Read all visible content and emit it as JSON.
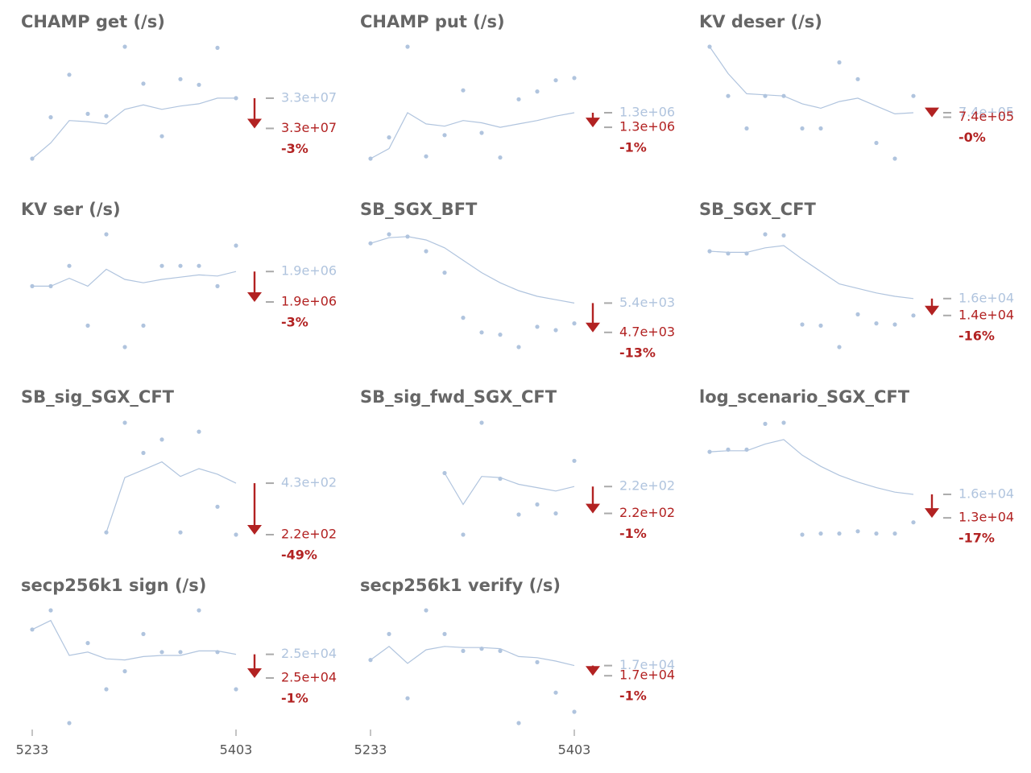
{
  "colors": {
    "title": "#666666",
    "line": "#b0c4de",
    "point": "#b0c4de",
    "prev_value": "#b0c4de",
    "current_value": "#b22222",
    "arrow": "#b22222",
    "axis": "#555555",
    "tick": "#aaaaaa"
  },
  "chart_data": [
    {
      "type": "line",
      "title": "CHAMP get (/s)",
      "x": [
        5233,
        5403
      ],
      "prev_label": "3.3e+07",
      "current_label": "3.3e+07",
      "change_label": "-3%",
      "points": [
        0.0,
        0.37,
        0.75,
        0.4,
        0.38,
        1.0,
        0.67,
        0.2,
        0.71,
        0.66,
        0.99,
        0.54
      ],
      "avg": [
        0.0,
        0.14,
        0.34,
        0.33,
        0.31,
        0.44,
        0.48,
        0.44,
        0.47,
        0.49,
        0.54,
        0.54
      ],
      "prev": 0.54,
      "cur": 0.27,
      "ylim": [
        -0.1,
        1.1
      ]
    },
    {
      "type": "line",
      "title": "CHAMP put (/s)",
      "x": [
        5233,
        5403
      ],
      "prev_label": "1.3e+06",
      "current_label": "1.3e+06",
      "change_label": "-1%",
      "points": [
        0.0,
        0.19,
        1.0,
        0.02,
        0.21,
        0.61,
        0.23,
        0.01,
        0.53,
        0.6,
        0.7,
        0.72
      ],
      "avg": [
        0.0,
        0.09,
        0.41,
        0.31,
        0.29,
        0.34,
        0.32,
        0.28,
        0.31,
        0.34,
        0.38,
        0.41
      ],
      "prev": 0.41,
      "cur": 0.28,
      "ylim": [
        -0.1,
        1.1
      ]
    },
    {
      "type": "line",
      "title": "KV deser (/s)",
      "x": [
        5233,
        5403
      ],
      "prev_label": "7.4e+05",
      "current_label": "7.4e+05",
      "change_label": "-0%",
      "points": [
        1.0,
        0.56,
        0.27,
        0.56,
        0.56,
        0.27,
        0.27,
        0.86,
        0.71,
        0.14,
        0.0,
        0.56
      ],
      "avg": [
        1.0,
        0.76,
        0.58,
        0.57,
        0.56,
        0.49,
        0.45,
        0.51,
        0.54,
        0.47,
        0.4,
        0.41
      ],
      "prev": 0.41,
      "cur": 0.37,
      "ylim": [
        -0.1,
        1.1
      ]
    },
    {
      "type": "line",
      "title": "KV ser (/s)",
      "x": [
        5233,
        5403
      ],
      "prev_label": "1.9e+06",
      "current_label": "1.9e+06",
      "change_label": "-3%",
      "points": [
        0.54,
        0.54,
        0.72,
        0.19,
        1.0,
        0.0,
        0.19,
        0.72,
        0.72,
        0.72,
        0.54,
        0.9
      ],
      "avg": [
        0.54,
        0.54,
        0.61,
        0.54,
        0.69,
        0.6,
        0.57,
        0.6,
        0.62,
        0.64,
        0.63,
        0.67
      ],
      "prev": 0.67,
      "cur": 0.4,
      "ylim": [
        -0.1,
        1.1
      ]
    },
    {
      "type": "line",
      "title": "SB_SGX_BFT",
      "x": [
        5233,
        5403
      ],
      "prev_label": "5.4e+03",
      "current_label": "4.7e+03",
      "change_label": "-13%",
      "points": [
        0.92,
        1.0,
        0.98,
        0.85,
        0.66,
        0.26,
        0.13,
        0.11,
        0.0,
        0.18,
        0.15,
        0.21
      ],
      "avg": [
        0.92,
        0.97,
        0.98,
        0.95,
        0.88,
        0.77,
        0.66,
        0.57,
        0.5,
        0.45,
        0.42,
        0.39
      ],
      "prev": 0.39,
      "cur": 0.13,
      "ylim": [
        -0.1,
        1.1
      ]
    },
    {
      "type": "line",
      "title": "SB_SGX_CFT",
      "x": [
        5233,
        5403
      ],
      "prev_label": "1.6e+04",
      "current_label": "1.4e+04",
      "change_label": "-16%",
      "points": [
        0.85,
        0.83,
        0.83,
        1.0,
        0.99,
        0.2,
        0.19,
        0.0,
        0.29,
        0.21,
        0.2,
        0.28
      ],
      "avg": [
        0.85,
        0.84,
        0.84,
        0.88,
        0.9,
        0.78,
        0.67,
        0.56,
        0.52,
        0.48,
        0.45,
        0.43
      ],
      "prev": 0.43,
      "cur": 0.28,
      "ylim": [
        -0.1,
        1.1
      ]
    },
    {
      "type": "line",
      "title": "SB_sig_SGX_CFT",
      "x": [
        5233,
        5403
      ],
      "prev_label": "4.3e+02",
      "current_label": "2.2e+02",
      "change_label": "-49%",
      "points": [
        null,
        null,
        null,
        null,
        0.02,
        1.0,
        0.73,
        0.85,
        0.02,
        0.92,
        0.25,
        0.0
      ],
      "avg": [
        null,
        null,
        null,
        null,
        0.02,
        0.51,
        0.58,
        0.65,
        0.52,
        0.59,
        0.54,
        0.46
      ],
      "prev": 0.46,
      "cur": 0.0,
      "ylim": [
        -0.1,
        1.1
      ]
    },
    {
      "type": "line",
      "title": "SB_sig_fwd_SGX_CFT",
      "x": [
        5233,
        5403
      ],
      "prev_label": "2.2e+02",
      "current_label": "2.2e+02",
      "change_label": "-1%",
      "points": [
        null,
        null,
        null,
        null,
        0.55,
        0.0,
        1.0,
        0.5,
        0.18,
        0.27,
        0.19,
        0.66
      ],
      "avg": [
        null,
        null,
        null,
        null,
        0.55,
        0.27,
        0.52,
        0.51,
        0.45,
        0.42,
        0.39,
        0.43
      ],
      "prev": 0.43,
      "cur": 0.19,
      "ylim": [
        -0.1,
        1.1
      ]
    },
    {
      "type": "line",
      "title": "log_scenario_SGX_CFT",
      "x": [
        5233,
        5403
      ],
      "prev_label": "1.6e+04",
      "current_label": "1.3e+04",
      "change_label": "-17%",
      "points": [
        0.74,
        0.76,
        0.76,
        0.99,
        1.0,
        0.0,
        0.01,
        0.01,
        0.03,
        0.01,
        0.01,
        0.11
      ],
      "avg": [
        0.74,
        0.75,
        0.75,
        0.81,
        0.85,
        0.71,
        0.61,
        0.53,
        0.47,
        0.42,
        0.38,
        0.36
      ],
      "prev": 0.36,
      "cur": 0.15,
      "ylim": [
        -0.1,
        1.1
      ]
    },
    {
      "type": "line",
      "title": "secp256k1 sign (/s)",
      "x": [
        5233,
        5403
      ],
      "prev_label": "2.5e+04",
      "current_label": "2.5e+04",
      "change_label": "-1%",
      "points": [
        0.83,
        1.0,
        0.0,
        0.71,
        0.3,
        0.46,
        0.79,
        0.63,
        0.63,
        1.0,
        0.63,
        0.3
      ],
      "avg": [
        0.83,
        0.91,
        0.6,
        0.63,
        0.57,
        0.56,
        0.59,
        0.6,
        0.6,
        0.64,
        0.64,
        0.61
      ],
      "prev": 0.61,
      "cur": 0.4,
      "ylim": [
        -0.1,
        1.1
      ]
    },
    {
      "type": "line",
      "title": "secp256k1 verify (/s)",
      "x": [
        5233,
        5403
      ],
      "prev_label": "1.7e+04",
      "current_label": "1.7e+04",
      "change_label": "-1%",
      "points": [
        0.56,
        0.79,
        0.22,
        1.0,
        0.79,
        0.64,
        0.66,
        0.64,
        0.0,
        0.54,
        0.27,
        0.1
      ],
      "avg": [
        0.56,
        0.68,
        0.53,
        0.65,
        0.68,
        0.67,
        0.67,
        0.66,
        0.59,
        0.58,
        0.55,
        0.51
      ],
      "prev": 0.51,
      "cur": 0.42,
      "ylim": [
        -0.1,
        1.1
      ]
    }
  ]
}
